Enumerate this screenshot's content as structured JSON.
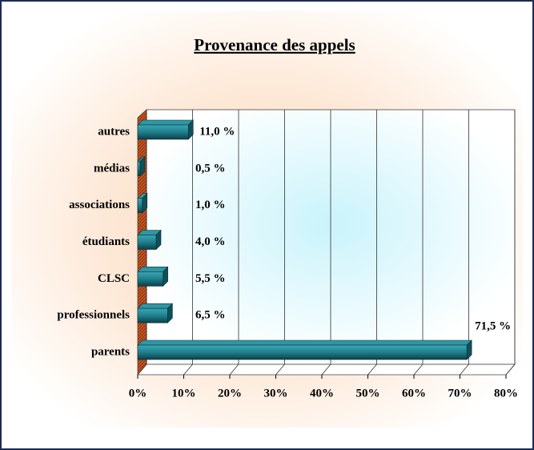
{
  "chart_data": {
    "type": "bar",
    "orientation": "horizontal",
    "title": "Provenance des appels",
    "categories": [
      "autres",
      "médias",
      "associations",
      "étudiants",
      "CLSC",
      "professionnels",
      "parents"
    ],
    "values": [
      11,
      0.5,
      1,
      4,
      5.5,
      6.5,
      71.5
    ],
    "value_labels": [
      "11,0 %",
      "0,5 %",
      "1,0 %",
      "4,0 %",
      "5,5 %",
      "6,5 %",
      "71,5 %"
    ],
    "color": "#1f7f8c",
    "xlim": [
      0,
      80
    ],
    "xticks": [
      {
        "value": 0,
        "label": "0%"
      },
      {
        "value": 10,
        "label": "10%"
      },
      {
        "value": 20,
        "label": "20%"
      },
      {
        "value": 30,
        "label": "30%"
      },
      {
        "value": 40,
        "label": "40%"
      },
      {
        "value": 50,
        "label": "50%"
      },
      {
        "value": 60,
        "label": "60%"
      },
      {
        "value": 70,
        "label": "70%"
      },
      {
        "value": 80,
        "label": "80%"
      }
    ],
    "grid": true
  }
}
